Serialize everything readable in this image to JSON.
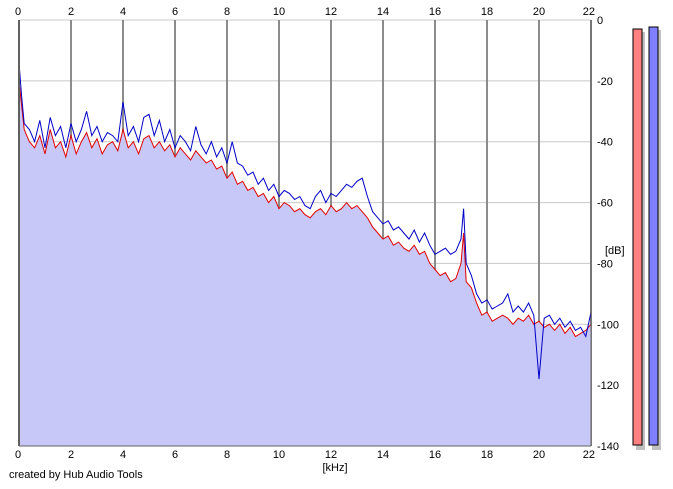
{
  "chart_data": {
    "type": "area",
    "title": "",
    "xlabel": "[kHz]",
    "ylabel": "[dB]",
    "xlim": [
      0,
      22
    ],
    "ylim": [
      -140,
      0
    ],
    "x_ticks": [
      "0",
      "2",
      "4",
      "6",
      "8",
      "10",
      "12",
      "14",
      "16",
      "18",
      "20",
      "22"
    ],
    "y_ticks": [
      "0",
      "-20",
      "-40",
      "-60",
      "-80",
      "-100",
      "-120",
      "-140"
    ],
    "grid": true,
    "credit": "created by Hub Audio Tools",
    "colors": {
      "fill": "#c8c8f8",
      "red_trace": "#e00000",
      "blue_trace": "#0000c8",
      "grid": "#c8c8c8",
      "meter_red": "#ff8080",
      "meter_blue": "#8080ff"
    },
    "series": [
      {
        "x": [
          0.0,
          0.1,
          0.2,
          0.4,
          0.6,
          0.8,
          1.0,
          1.2,
          1.4,
          1.6,
          1.8,
          2.0,
          2.2,
          2.4,
          2.6,
          2.8,
          3.0,
          3.2,
          3.4,
          3.6,
          3.8,
          4.0,
          4.2,
          4.4,
          4.6,
          4.8,
          5.0,
          5.2,
          5.4,
          5.6,
          5.8,
          6.0,
          6.2,
          6.4,
          6.6,
          6.8,
          7.0,
          7.2,
          7.4,
          7.6,
          7.8,
          8.0,
          8.2,
          8.4,
          8.6,
          8.8,
          9.0,
          9.2,
          9.4,
          9.6,
          9.8,
          10.0,
          10.2,
          10.4,
          10.6,
          10.8,
          11.0,
          11.2,
          11.4,
          11.6,
          11.8,
          12.0,
          12.2,
          12.4,
          12.6,
          12.8,
          13.0,
          13.2,
          13.4,
          13.6,
          13.8,
          14.0,
          14.2,
          14.4,
          14.6,
          14.8,
          15.0,
          15.2,
          15.4,
          15.6,
          15.8,
          16.0,
          16.2,
          16.4,
          16.6,
          16.8,
          17.0,
          17.1,
          17.2,
          17.4,
          17.6,
          17.8,
          18.0,
          18.2,
          18.4,
          18.6,
          18.8,
          19.0,
          19.2,
          19.4,
          19.6,
          19.8,
          20.0,
          20.2,
          20.4,
          20.6,
          20.8,
          21.0,
          21.2,
          21.4,
          21.6,
          21.8,
          22.0
        ],
        "values": [
          -20,
          -28,
          -36,
          -40,
          -42,
          -38,
          -44,
          -36,
          -42,
          -40,
          -45,
          -38,
          -44,
          -40,
          -37,
          -42,
          -39,
          -44,
          -41,
          -40,
          -43,
          -36,
          -42,
          -40,
          -44,
          -39,
          -38,
          -42,
          -40,
          -43,
          -41,
          -45,
          -42,
          -44,
          -46,
          -43,
          -45,
          -47,
          -46,
          -49,
          -48,
          -52,
          -50,
          -54,
          -53,
          -56,
          -55,
          -58,
          -57,
          -60,
          -58,
          -62,
          -60,
          -61,
          -63,
          -62,
          -64,
          -65,
          -63,
          -62,
          -64,
          -61,
          -63,
          -62,
          -60,
          -62,
          -61,
          -63,
          -65,
          -68,
          -70,
          -72,
          -71,
          -74,
          -73,
          -75,
          -76,
          -74,
          -77,
          -76,
          -80,
          -82,
          -84,
          -83,
          -86,
          -85,
          -80,
          -70,
          -86,
          -88,
          -93,
          -97,
          -96,
          -99,
          -98,
          -97,
          -98,
          -100,
          -98,
          -99,
          -97,
          -100,
          -99,
          -101,
          -100,
          -102,
          -100,
          -103,
          -101,
          -104,
          -103,
          -102,
          -100
        ]
      },
      {
        "x": [
          0.0,
          0.1,
          0.2,
          0.4,
          0.6,
          0.8,
          1.0,
          1.2,
          1.4,
          1.6,
          1.8,
          2.0,
          2.2,
          2.4,
          2.6,
          2.8,
          3.0,
          3.2,
          3.4,
          3.6,
          3.8,
          4.0,
          4.2,
          4.4,
          4.6,
          4.8,
          5.0,
          5.2,
          5.4,
          5.6,
          5.8,
          6.0,
          6.2,
          6.4,
          6.6,
          6.8,
          7.0,
          7.2,
          7.4,
          7.6,
          7.8,
          8.0,
          8.2,
          8.4,
          8.6,
          8.8,
          9.0,
          9.2,
          9.4,
          9.6,
          9.8,
          10.0,
          10.2,
          10.4,
          10.6,
          10.8,
          11.0,
          11.2,
          11.4,
          11.6,
          11.8,
          12.0,
          12.2,
          12.4,
          12.6,
          12.8,
          13.0,
          13.2,
          13.4,
          13.6,
          13.8,
          14.0,
          14.2,
          14.4,
          14.6,
          14.8,
          15.0,
          15.2,
          15.4,
          15.6,
          15.8,
          16.0,
          16.2,
          16.4,
          16.6,
          16.8,
          17.0,
          17.1,
          17.2,
          17.4,
          17.6,
          17.8,
          18.0,
          18.2,
          18.4,
          18.6,
          18.8,
          19.0,
          19.2,
          19.4,
          19.6,
          19.8,
          20.0,
          20.2,
          20.4,
          20.6,
          20.8,
          21.0,
          21.2,
          21.4,
          21.6,
          21.8,
          22.0
        ],
        "values": [
          -14,
          -25,
          -34,
          -36,
          -40,
          -33,
          -42,
          -32,
          -38,
          -35,
          -42,
          -34,
          -40,
          -36,
          -30,
          -38,
          -35,
          -40,
          -37,
          -38,
          -40,
          -27,
          -38,
          -35,
          -40,
          -32,
          -31,
          -38,
          -33,
          -40,
          -36,
          -42,
          -38,
          -40,
          -43,
          -35,
          -41,
          -44,
          -40,
          -45,
          -42,
          -47,
          -40,
          -47,
          -48,
          -51,
          -50,
          -54,
          -52,
          -56,
          -54,
          -58,
          -56,
          -57,
          -59,
          -58,
          -61,
          -62,
          -58,
          -56,
          -60,
          -57,
          -58,
          -56,
          -54,
          -55,
          -53,
          -52,
          -58,
          -63,
          -65,
          -67,
          -66,
          -69,
          -68,
          -70,
          -72,
          -69,
          -73,
          -70,
          -74,
          -77,
          -76,
          -75,
          -77,
          -76,
          -72,
          -62,
          -80,
          -84,
          -90,
          -93,
          -92,
          -95,
          -94,
          -93,
          -90,
          -96,
          -94,
          -96,
          -93,
          -97,
          -118,
          -98,
          -97,
          -100,
          -98,
          -101,
          -99,
          -102,
          -101,
          -104,
          -96
        ]
      }
    ]
  }
}
